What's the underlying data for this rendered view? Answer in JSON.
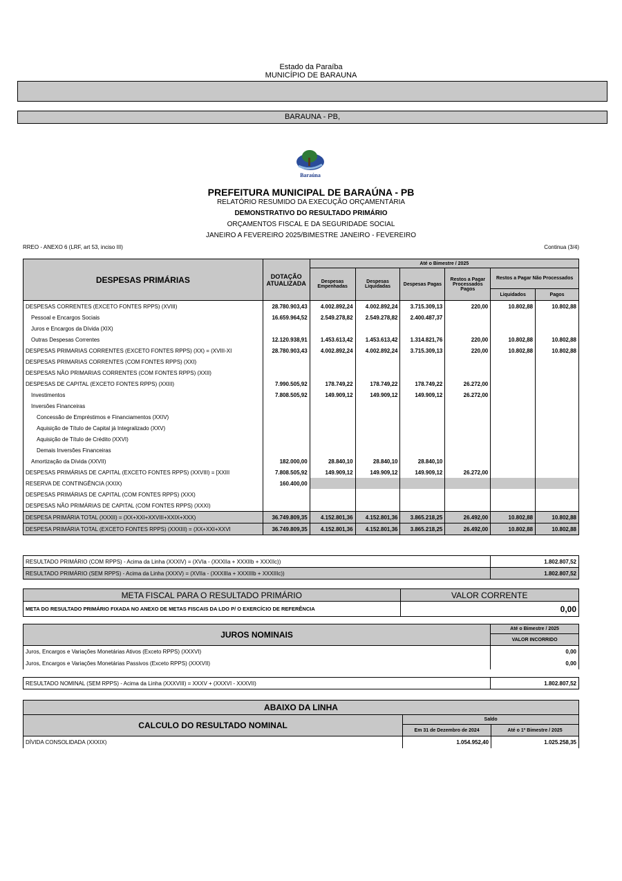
{
  "header": {
    "state": "Estado da Paraíba",
    "municipality": "MUNICÍPIO DE BARAUNA",
    "location": "BARAUNA - PB,"
  },
  "logo": {
    "text": "Baraúna"
  },
  "title": {
    "main": "PREFEITURA MUNICIPAL DE BARAÚNA - PB",
    "l1": "RELATÓRIO RESUMIDO DA EXECUÇÃO ORÇAMENTÁRIA",
    "l2": "DEMONSTRATIVO DO RESULTADO PRIMÁRIO",
    "l3": "ORÇAMENTOS FISCAL E DA SEGURIDADE SOCIAL",
    "l4": "JANEIRO A FEVEREIRO 2025/BIMESTRE JANEIRO - FEVEREIRO"
  },
  "annex": "RREO - ANEXO 6 (LRF, art 53, inciso III)",
  "continua": "Continua (3/4)",
  "main": {
    "headers": {
      "title": "DESPESAS PRIMÁRIAS",
      "dotacao": "DOTAÇÃO ATUALIZADA",
      "bimestre": "Até o Bimestre /  2025",
      "empenhadas": "Despesas Empenhadas",
      "liquidadas": "Despesas Liquidadas",
      "pagas": "Despesas Pagas",
      "rp_proc": "Restos a Pagar Processados",
      "rp_proc_pagos": "Pagos",
      "rp_nproc": "Restos a Pagar Não Processados",
      "liquidados": "Liquidados",
      "pagos": "Pagos"
    },
    "rows": [
      {
        "label": "DESPESAS CORRENTES (EXCETO FONTES RPPS) (XVIII)",
        "indent": 0,
        "values": [
          "28.780.903,43",
          "4.002.892,24",
          "4.002.892,24",
          "3.715.309,13",
          "220,00",
          "10.802,88",
          "10.802,88"
        ]
      },
      {
        "label": "Pessoal e Encargos Sociais",
        "indent": 1,
        "values": [
          "16.659.964,52",
          "2.549.278,82",
          "2.549.278,82",
          "2.400.487,37",
          "",
          "",
          ""
        ]
      },
      {
        "label": "Juros e Encargos da Dívida (XIX)",
        "indent": 1,
        "values": [
          "",
          "",
          "",
          "",
          "",
          "",
          ""
        ]
      },
      {
        "label": "Outras Despesas Correntes",
        "indent": 1,
        "values": [
          "12.120.938,91",
          "1.453.613,42",
          "1.453.613,42",
          "1.314.821,76",
          "220,00",
          "10.802,88",
          "10.802,88"
        ]
      },
      {
        "label": "DESPESAS PRIMARIAS CORRENTES (EXCETO FONTES RPPS) (XX) = (XVIII-XI",
        "indent": 0,
        "values": [
          "28.780.903,43",
          "4.002.892,24",
          "4.002.892,24",
          "3.715.309,13",
          "220,00",
          "10.802,88",
          "10.802,88"
        ]
      },
      {
        "label": "DESPESAS PRIMARIAS CORRENTES (COM FONTES RPPS) (XXI)",
        "indent": 0,
        "values": [
          "",
          "",
          "",
          "",
          "",
          "",
          ""
        ]
      },
      {
        "label": "DESPESAS NÃO PRIMARIAS CORRENTES (COM FONTES RPPS) (XXII)",
        "indent": 0,
        "values": [
          "",
          "",
          "",
          "",
          "",
          "",
          ""
        ]
      },
      {
        "label": "DESPESAS DE CAPITAL (EXCETO FONTES RPPS) (XXIII)",
        "indent": 0,
        "values": [
          "7.990.505,92",
          "178.749,22",
          "178.749,22",
          "178.749,22",
          "26.272,00",
          "",
          ""
        ]
      },
      {
        "label": "Investimentos",
        "indent": 1,
        "values": [
          "7.808.505,92",
          "149.909,12",
          "149.909,12",
          "149.909,12",
          "26.272,00",
          "",
          ""
        ]
      },
      {
        "label": "Inversões Financeiras",
        "indent": 1,
        "values": [
          "",
          "",
          "",
          "",
          "",
          "",
          ""
        ]
      },
      {
        "label": "Concessão de Empréstimos e Financiamentos (XXIV)",
        "indent": 2,
        "values": [
          "",
          "",
          "",
          "",
          "",
          "",
          ""
        ]
      },
      {
        "label": "Aquisição de Título de Capital já Integralizado (XXV)",
        "indent": 2,
        "values": [
          "",
          "",
          "",
          "",
          "",
          "",
          ""
        ]
      },
      {
        "label": "Aquisição de Título de Crédito (XXVI)",
        "indent": 2,
        "values": [
          "",
          "",
          "",
          "",
          "",
          "",
          ""
        ]
      },
      {
        "label": "Demais Inversões Financeiras",
        "indent": 2,
        "values": [
          "",
          "",
          "",
          "",
          "",
          "",
          ""
        ]
      },
      {
        "label": "Amortização da Dívida (XXVII)",
        "indent": 1,
        "values": [
          "182.000,00",
          "28.840,10",
          "28.840,10",
          "28.840,10",
          "",
          "",
          ""
        ]
      },
      {
        "label": "DESPESAS PRIMÁRIAS DE CAPITAL (EXCETO FONTES RPPS) (XXVIII) = [XXIII",
        "indent": 0,
        "values": [
          "7.808.505,92",
          "149.909,12",
          "149.909,12",
          "149.909,12",
          "26.272,00",
          "",
          ""
        ]
      },
      {
        "label": "RESERVA DE CONTINGÊNCIA (XXIX)",
        "indent": 0,
        "grayCells": true,
        "values": [
          "160.400,00",
          "",
          "",
          "",
          "",
          "",
          ""
        ]
      },
      {
        "label": "DESPESAS PRIMÁRIAS DE CAPITAL (COM FONTES RPPS) (XXX)",
        "indent": 0,
        "values": [
          "",
          "",
          "",
          "",
          "",
          "",
          ""
        ]
      },
      {
        "label": "DESPESAS NÃO PRIMÁRIAS DE CAPITAL (COM FONTES RPPS) (XXXI)",
        "indent": 0,
        "values": [
          "",
          "",
          "",
          "",
          "",
          "",
          ""
        ]
      },
      {
        "label": "DESPESA PRIMÁRIA TOTAL (XXXII) = (XX+XXI+XXVIII+XXIX+XXX)",
        "indent": 0,
        "total": true,
        "values": [
          "36.749.809,35",
          "4.152.801,36",
          "4.152.801,36",
          "3.865.218,25",
          "26.492,00",
          "10.802,88",
          "10.802,88"
        ]
      },
      {
        "label": "DESPESA PRIMÁRIA TOTAL (EXCETO FONTES RPPS) (XXXIII) = (XX+XXI+XXVI",
        "indent": 0,
        "total": true,
        "values": [
          "36.749.809,35",
          "4.152.801,36",
          "4.152.801,36",
          "3.865.218,25",
          "26.492,00",
          "10.802,88",
          "10.802,88"
        ]
      }
    ]
  },
  "resultado": [
    {
      "label": "RESULTADO PRIMÁRIO (COM RPPS) - Acima da Linha (XXXIV) = (XVIa - (XXXIIa + XXXIIb + XXXIIc))",
      "value": "1.802.807,52"
    },
    {
      "label": "RESULTADO PRIMÁRIO (SEM RPPS) - Acima da Linha (XXXV) = (XVIIa - (XXXIIIa + XXXIIIb + XXXIIIc))",
      "value": "1.802.807,52"
    }
  ],
  "meta": {
    "header": "META FISCAL PARA O RESULTADO PRIMÁRIO",
    "value_header": "VALOR CORRENTE",
    "label": "META DO RESULTADO PRIMÁRIO FIXADA NO ANEXO DE METAS FISCAIS DA LDO P/ O EXERCÍCIO DE REFERÊNCIA",
    "value": "0,00"
  },
  "juros": {
    "header": "JUROS NOMINAIS",
    "bimestre": "Até o Bimestre /  2025",
    "valor": "VALOR INCORRIDO",
    "rows": [
      {
        "label": "Juros, Encargos e Variações Monetárias Ativos (Exceto RPPS) (XXXVI)",
        "value": "0,00"
      },
      {
        "label": "Juros, Encargos e Variações Monetárias Passivos (Exceto RPPS) (XXXVII)",
        "value": "0,00"
      }
    ]
  },
  "nominal": {
    "label": "RESULTADO NOMINAL (SEM RPPS) - Acima da Linha (XXXVIII) =  XXXV + (XXXVI - XXXVII)",
    "value": "1.802.807,52"
  },
  "abaixo": {
    "header": "ABAIXO DA LINHA",
    "title": "CALCULO DO RESULTADO NOMINAL",
    "saldo": "Saldo",
    "col1": "Em 31 de Dezembro de 2024",
    "col2": "Até o 1º Bimestre / 2025",
    "rows": [
      {
        "label": "DÍVIDA CONSOLIDADA (XXXIX)",
        "v1": "1.054.952,40",
        "v2": "1.025.258,35"
      }
    ]
  }
}
